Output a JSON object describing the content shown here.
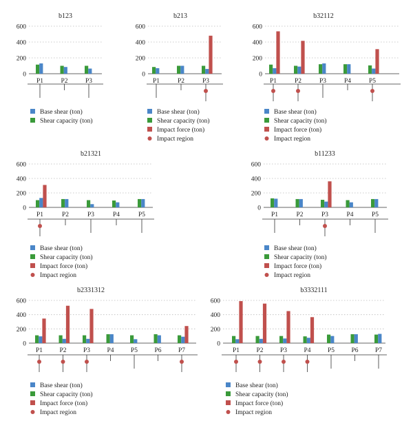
{
  "colors": {
    "base_shear": "#4a86c8",
    "shear_capacity": "#3a9a3a",
    "impact_force": "#c0504d",
    "impact_region": "#c0504d",
    "axis": "#333333",
    "grid": "#bbbbbb"
  },
  "chart_data": [
    {
      "type": "bar",
      "title": "b123",
      "categories": [
        "P1",
        "P2",
        "P3"
      ],
      "ylim": [
        0,
        600
      ],
      "yticks": [
        0,
        200,
        400,
        600
      ],
      "grid": "dotted horizontal",
      "series": [
        {
          "name": "Shear capacity (ton)",
          "values": [
            115,
            100,
            100
          ]
        },
        {
          "name": "Base shear (ton)",
          "values": [
            130,
            85,
            65
          ]
        }
      ],
      "impact_regions": [],
      "legend": [
        "Base shear (ton)",
        "Shear capacity (ton)"
      ]
    },
    {
      "type": "bar",
      "title": "b213",
      "categories": [
        "P1",
        "P2",
        "P3"
      ],
      "ylim": [
        0,
        600
      ],
      "yticks": [
        0,
        200,
        400,
        600
      ],
      "grid": "dotted horizontal",
      "series": [
        {
          "name": "Shear capacity (ton)",
          "values": [
            85,
            100,
            100
          ]
        },
        {
          "name": "Base shear (ton)",
          "values": [
            70,
            100,
            60
          ]
        },
        {
          "name": "Impact force (ton)",
          "values": [
            0,
            0,
            480
          ]
        }
      ],
      "impact_regions": [
        "P3"
      ],
      "legend": [
        "Base shear (ton)",
        "Shear capacity (ton)",
        "Impact force (ton)",
        "Impact region"
      ]
    },
    {
      "type": "bar",
      "title": "b32112",
      "categories": [
        "P1",
        "P2",
        "P3",
        "P4",
        "P5"
      ],
      "ylim": [
        0,
        600
      ],
      "yticks": [
        0,
        200,
        400,
        600
      ],
      "grid": "dotted horizontal",
      "series": [
        {
          "name": "Shear capacity (ton)",
          "values": [
            115,
            100,
            120,
            120,
            105
          ]
        },
        {
          "name": "Base shear (ton)",
          "values": [
            70,
            90,
            130,
            120,
            65
          ]
        },
        {
          "name": "Impact force (ton)",
          "values": [
            535,
            415,
            0,
            0,
            310
          ]
        }
      ],
      "impact_regions": [
        "P1",
        "P2",
        "P5"
      ],
      "legend": [
        "Base shear (ton)",
        "Shear capacity (ton)",
        "Impact force (ton)",
        "Impact region"
      ]
    },
    {
      "type": "bar",
      "title": "b21321",
      "categories": [
        "P1",
        "P2",
        "P3",
        "P4",
        "P5"
      ],
      "ylim": [
        0,
        600
      ],
      "yticks": [
        0,
        200,
        400,
        600
      ],
      "grid": "dotted horizontal",
      "series": [
        {
          "name": "Shear capacity (ton)",
          "values": [
            100,
            115,
            100,
            95,
            115
          ]
        },
        {
          "name": "Base shear (ton)",
          "values": [
            130,
            115,
            45,
            70,
            115
          ]
        },
        {
          "name": "Impact force (ton)",
          "values": [
            310,
            0,
            0,
            0,
            0
          ]
        }
      ],
      "impact_regions": [
        "P1"
      ],
      "legend": [
        "Base shear (ton)",
        "Shear capacity (ton)",
        "Impact force (ton)",
        "Impact region"
      ]
    },
    {
      "type": "bar",
      "title": "b11233",
      "categories": [
        "P1",
        "P2",
        "P3",
        "P4",
        "P5"
      ],
      "ylim": [
        0,
        600
      ],
      "yticks": [
        0,
        200,
        400,
        600
      ],
      "grid": "dotted horizontal",
      "series": [
        {
          "name": "Shear capacity (ton)",
          "values": [
            125,
            115,
            105,
            100,
            115
          ]
        },
        {
          "name": "Base shear (ton)",
          "values": [
            120,
            115,
            80,
            70,
            115
          ]
        },
        {
          "name": "Impact force (ton)",
          "values": [
            0,
            0,
            360,
            0,
            0
          ]
        }
      ],
      "impact_regions": [
        "P3"
      ],
      "legend": [
        "Base shear (ton)",
        "Shear capacity (ton)",
        "Impact force (ton)",
        "Impact region"
      ]
    },
    {
      "type": "bar",
      "title": "b2331312",
      "categories": [
        "P1",
        "P2",
        "P3",
        "P4",
        "P5",
        "P6",
        "P7"
      ],
      "ylim": [
        0,
        600
      ],
      "yticks": [
        0,
        200,
        400,
        600
      ],
      "grid": "dotted horizontal",
      "series": [
        {
          "name": "Shear capacity (ton)",
          "values": [
            110,
            110,
            110,
            125,
            110,
            125,
            110
          ]
        },
        {
          "name": "Base shear (ton)",
          "values": [
            95,
            60,
            60,
            125,
            55,
            110,
            90
          ]
        },
        {
          "name": "Impact force (ton)",
          "values": [
            345,
            525,
            480,
            0,
            0,
            0,
            240
          ]
        }
      ],
      "impact_regions": [
        "P1",
        "P2",
        "P3",
        "P7"
      ],
      "legend": [
        "Base shear (ton)",
        "Shear capacity (ton)",
        "Impact force (ton)",
        "Impact region"
      ]
    },
    {
      "type": "bar",
      "title": "b3332111",
      "categories": [
        "P1",
        "P2",
        "P3",
        "P4",
        "P5",
        "P6",
        "P7"
      ],
      "ylim": [
        0,
        600
      ],
      "yticks": [
        0,
        200,
        400,
        600
      ],
      "grid": "dotted horizontal",
      "series": [
        {
          "name": "Shear capacity (ton)",
          "values": [
            100,
            100,
            100,
            95,
            120,
            125,
            120
          ]
        },
        {
          "name": "Base shear (ton)",
          "values": [
            55,
            60,
            65,
            75,
            100,
            125,
            130
          ]
        },
        {
          "name": "Impact force (ton)",
          "values": [
            590,
            555,
            450,
            365,
            0,
            0,
            0
          ]
        }
      ],
      "impact_regions": [
        "P1",
        "P2",
        "P3",
        "P4"
      ],
      "legend": [
        "Base shear (ton)",
        "Shear capacity (ton)",
        "Impact force (ton)",
        "Impact region"
      ]
    }
  ]
}
